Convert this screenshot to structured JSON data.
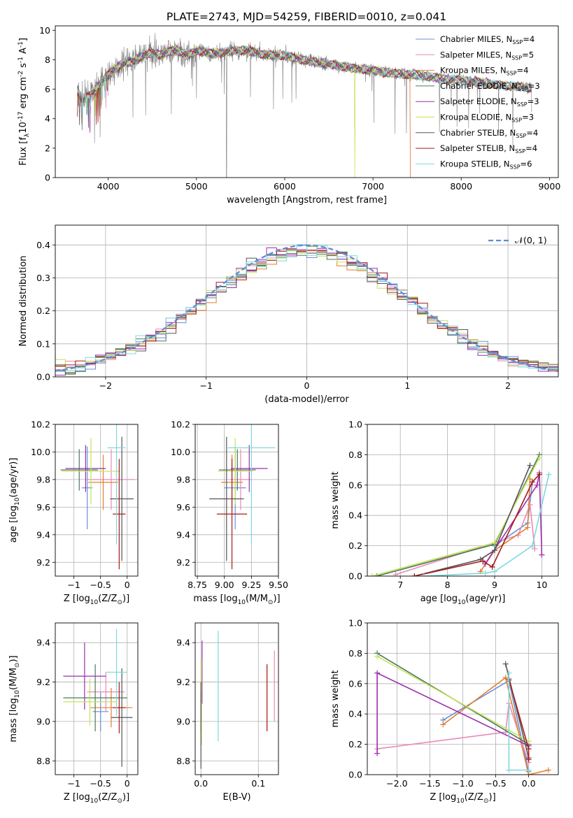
{
  "figure": {
    "title": "PLATE=2743, MJD=54259, FIBERID=0010, z=0.041"
  },
  "colors": {
    "data_line": "#808080",
    "grid": "#b0b0b0",
    "normal_curve": "#5b8bd8"
  },
  "models": [
    {
      "name": "Chabrier MILES, N$_{SSP}$=4",
      "label_main": "Chabrier MILES, N",
      "label_sub": "SSP",
      "label_tail": "=4",
      "color": "#6a8fd8"
    },
    {
      "name": "Salpeter MILES, N$_{SSP}$=5",
      "label_main": "Salpeter MILES, N",
      "label_sub": "SSP",
      "label_tail": "=5",
      "color": "#e88ab8"
    },
    {
      "name": "Kroupa MILES, N$_{SSP}$=4",
      "label_main": "Kroupa MILES, N",
      "label_sub": "SSP",
      "label_tail": "=4",
      "color": "#e2802e"
    },
    {
      "name": "Chabrier ELODIE, N$_{SSP}$=3",
      "label_main": "Chabrier ELODIE, N",
      "label_sub": "SSP",
      "label_tail": "=3",
      "color": "#4a7a5a"
    },
    {
      "name": "Salpeter ELODIE, N$_{SSP}$=3",
      "label_main": "Salpeter ELODIE, N",
      "label_sub": "SSP",
      "label_tail": "=3",
      "color": "#9b2fae"
    },
    {
      "name": "Kroupa ELODIE, N$_{SSP}$=3",
      "label_main": "Kroupa ELODIE, N",
      "label_sub": "SSP",
      "label_tail": "=3",
      "color": "#c6e25a"
    },
    {
      "name": "Chabrier STELIB, N$_{SSP}$=4",
      "label_main": "Chabrier STELIB, N",
      "label_sub": "SSP",
      "label_tail": "=4",
      "color": "#555555"
    },
    {
      "name": "Salpeter STELIB, N$_{SSP}$=4",
      "label_main": "Salpeter STELIB, N",
      "label_sub": "SSP",
      "label_tail": "=4",
      "color": "#a51c1c"
    },
    {
      "name": "Kroupa STELIB, N$_{SSP}$=6",
      "label_main": "Kroupa STELIB, N",
      "label_sub": "SSP",
      "label_tail": "=6",
      "color": "#7fd8de"
    }
  ],
  "chart_data": [
    {
      "id": "spectrum",
      "type": "line",
      "xlabel": "wavelength [Angstrom, rest frame]",
      "ylabel": "Flux [f$_\\lambda$10$^{-17}$ erg cm$^{-2}$ s$^{-1}$ A$^{-1}$]",
      "xlim": [
        3400,
        9100
      ],
      "ylim": [
        0,
        10.3
      ],
      "xticks": [
        4000,
        5000,
        6000,
        7000,
        8000,
        9000
      ],
      "yticks": [
        0,
        2,
        4,
        6,
        8,
        10
      ],
      "legend": "upper right",
      "data_trend": {
        "x": [
          3650,
          3700,
          3800,
          3900,
          4000,
          4100,
          4200,
          4300,
          4400,
          4500,
          4600,
          4700,
          4800,
          4900,
          5000,
          5200,
          5400,
          5600,
          5800,
          6000,
          6200,
          6400,
          6600,
          6800,
          7000,
          7200,
          7400,
          7600,
          7800,
          8000,
          8200,
          8400,
          8600,
          8800
        ],
        "y": [
          6.0,
          5.2,
          5.6,
          6.3,
          7.0,
          7.5,
          7.8,
          7.9,
          8.3,
          8.5,
          8.3,
          8.6,
          8.6,
          8.3,
          8.6,
          8.4,
          8.6,
          8.6,
          8.3,
          8.3,
          8.0,
          7.8,
          7.6,
          7.4,
          7.3,
          7.1,
          7.0,
          6.9,
          6.7,
          6.6,
          6.5,
          6.3,
          6.2,
          6.1
        ]
      }
    },
    {
      "id": "residuals",
      "type": "histogram",
      "xlabel": "(data-model)/error",
      "ylabel": "Normed distribution",
      "xlim": [
        -2.5,
        2.5
      ],
      "ylim": [
        0,
        0.46
      ],
      "xticks": [
        -2,
        -1,
        0,
        1,
        2
      ],
      "yticks": [
        0.0,
        0.1,
        0.2,
        0.3,
        0.4
      ],
      "legend_label": "$\\mathcal{N}(0,1)$",
      "legend_text": "𝒩(0, 1)",
      "bin_edges_start": -2.5,
      "bin_width": 0.1
    },
    {
      "id": "age_vs_Z",
      "type": "errorbar",
      "xlabel": "Z [log$_{10}$(Z/Z$_\\odot$)]",
      "ylabel": "age  [log$_{10}$(age/yr)]",
      "xlim": [
        -1.35,
        0.2
      ],
      "ylim": [
        9.1,
        10.2
      ],
      "xticks": [
        -1,
        -0.5,
        0
      ],
      "xticklabels": [
        "−1",
        "−0.5",
        "0"
      ],
      "yticks": [
        9.2,
        9.4,
        9.6,
        9.8,
        10.0,
        10.2
      ],
      "points": [
        {
          "x": -0.75,
          "y": 9.74,
          "xerr": 0.1,
          "yerr": 0.3
        },
        {
          "x": -0.3,
          "y": 9.8,
          "xerr": 0.45,
          "yerr": 0.22
        },
        {
          "x": -0.45,
          "y": 9.78,
          "xerr": 0.28,
          "yerr": 0.2
        },
        {
          "x": -0.9,
          "y": 9.87,
          "xerr": 0.35,
          "yerr": 0.15
        },
        {
          "x": -0.78,
          "y": 9.88,
          "xerr": 0.38,
          "yerr": 0.17
        },
        {
          "x": -0.68,
          "y": 9.86,
          "xerr": 0.55,
          "yerr": 0.24
        },
        {
          "x": -0.1,
          "y": 9.66,
          "xerr": 0.22,
          "yerr": 0.45
        },
        {
          "x": -0.15,
          "y": 9.55,
          "xerr": 0.12,
          "yerr": 0.4
        },
        {
          "x": -0.2,
          "y": 10.03,
          "xerr": 0.17,
          "yerr": 0.7
        }
      ]
    },
    {
      "id": "age_vs_mass",
      "type": "errorbar",
      "xlabel": "mass [log$_{10}$(M/M$_\\odot$)]",
      "ylabel": "",
      "xlim": [
        8.73,
        9.5
      ],
      "ylim": [
        9.1,
        10.2
      ],
      "xticks": [
        8.75,
        9.0,
        9.25,
        9.5
      ],
      "xticklabels": [
        "8.75",
        "9.00",
        "9.25",
        "9.50"
      ],
      "yticks": [
        9.2,
        9.4,
        9.6,
        9.8,
        10.0,
        10.2
      ],
      "points": [
        {
          "x": 9.1,
          "y": 9.74,
          "xerr": 0.1,
          "yerr": 0.3
        },
        {
          "x": 9.15,
          "y": 9.8,
          "xerr": 0.1,
          "yerr": 0.22
        },
        {
          "x": 9.07,
          "y": 9.78,
          "xerr": 0.1,
          "yerr": 0.2
        },
        {
          "x": 9.12,
          "y": 9.87,
          "xerr": 0.17,
          "yerr": 0.15
        },
        {
          "x": 9.23,
          "y": 9.88,
          "xerr": 0.17,
          "yerr": 0.17
        },
        {
          "x": 9.1,
          "y": 9.86,
          "xerr": 0.16,
          "yerr": 0.24
        },
        {
          "x": 9.02,
          "y": 9.66,
          "xerr": 0.16,
          "yerr": 0.45
        },
        {
          "x": 9.07,
          "y": 9.55,
          "xerr": 0.14,
          "yerr": 0.4
        },
        {
          "x": 9.25,
          "y": 10.03,
          "xerr": 0.22,
          "yerr": 0.7
        }
      ]
    },
    {
      "id": "weight_vs_age",
      "type": "line",
      "xlabel": "age  [log$_{10}$(age/yr)]",
      "ylabel": "mass weight",
      "xlim": [
        6.3,
        10.35
      ],
      "ylim": [
        0,
        1.0
      ],
      "xticks": [
        7,
        8,
        9,
        10
      ],
      "yticks": [
        0.0,
        0.2,
        0.4,
        0.6,
        0.8,
        1.0
      ],
      "series": [
        {
          "model": 0,
          "x": [
            9.0,
            9.7,
            9.8
          ],
          "y": [
            0.2,
            0.35,
            0.62
          ]
        },
        {
          "model": 1,
          "x": [
            6.9,
            9.5,
            9.75,
            9.85
          ],
          "y": [
            0.01,
            0.27,
            0.47,
            0.18
          ]
        },
        {
          "model": 2,
          "x": [
            8.7,
            9.0,
            9.7,
            9.75
          ],
          "y": [
            0.03,
            0.17,
            0.32,
            0.64
          ]
        },
        {
          "model": 3,
          "x": [
            6.5,
            9.0,
            9.95
          ],
          "y": [
            0.0,
            0.21,
            0.8
          ]
        },
        {
          "model": 4,
          "x": [
            8.8,
            9.9,
            9.95,
            10.0
          ],
          "y": [
            0.08,
            0.6,
            0.68,
            0.14
          ]
        },
        {
          "model": 5,
          "x": [
            6.4,
            9.0,
            9.95
          ],
          "y": [
            0.0,
            0.22,
            0.78
          ]
        },
        {
          "model": 6,
          "x": [
            7.3,
            8.7,
            9.0,
            9.75
          ],
          "y": [
            0.0,
            0.11,
            0.17,
            0.73
          ]
        },
        {
          "model": 7,
          "x": [
            7.3,
            8.75,
            8.95,
            9.8,
            9.95
          ],
          "y": [
            0.0,
            0.1,
            0.06,
            0.62,
            0.67
          ]
        },
        {
          "model": 8,
          "x": [
            7.5,
            8.8,
            9.0,
            9.8,
            10.15
          ],
          "y": [
            0.0,
            0.02,
            0.03,
            0.2,
            0.67
          ]
        }
      ]
    },
    {
      "id": "mass_vs_Z",
      "type": "errorbar",
      "xlabel": "Z [log$_{10}$(Z/Z$_\\odot$)]",
      "ylabel": "mass [log$_{10}$(M/M$_\\odot$)]",
      "xlim": [
        -1.35,
        0.2
      ],
      "ylim": [
        8.73,
        9.5
      ],
      "xticks": [
        -1,
        -0.5,
        0
      ],
      "xticklabels": [
        "−1",
        "−0.5",
        "0"
      ],
      "yticks": [
        8.8,
        9.0,
        9.2,
        9.4
      ],
      "points": [
        {
          "x": -0.5,
          "y": 9.05,
          "xerr": 0.15,
          "yerr": 0.1
        },
        {
          "x": -0.4,
          "y": 9.15,
          "xerr": 0.35,
          "yerr": 0.1
        },
        {
          "x": -0.3,
          "y": 9.07,
          "xerr": 0.4,
          "yerr": 0.1
        },
        {
          "x": -0.6,
          "y": 9.12,
          "xerr": 0.6,
          "yerr": 0.17
        },
        {
          "x": -0.8,
          "y": 9.23,
          "xerr": 0.4,
          "yerr": 0.17
        },
        {
          "x": -0.7,
          "y": 9.1,
          "xerr": 0.5,
          "yerr": 0.12
        },
        {
          "x": -0.1,
          "y": 9.02,
          "xerr": 0.2,
          "yerr": 0.25
        },
        {
          "x": -0.15,
          "y": 9.07,
          "xerr": 0.12,
          "yerr": 0.13
        },
        {
          "x": -0.2,
          "y": 9.25,
          "xerr": 0.2,
          "yerr": 0.22
        }
      ]
    },
    {
      "id": "mass_vs_ebv",
      "type": "errorbar",
      "xlabel": "E(B-V)",
      "ylabel": "",
      "xlim": [
        -0.01,
        0.135
      ],
      "ylim": [
        8.73,
        9.5
      ],
      "xticks": [
        0.0,
        0.1
      ],
      "xticklabels": [
        "0.0",
        "0.1"
      ],
      "yticks": [
        8.8,
        9.0,
        9.2,
        9.4
      ],
      "points": [
        {
          "x": 0.001,
          "y": 9.12,
          "xerr": 0,
          "yerr": 0.12
        },
        {
          "x": 0.128,
          "y": 9.18,
          "xerr": 0,
          "yerr": 0.18
        },
        {
          "x": 0.115,
          "y": 9.12,
          "xerr": 0,
          "yerr": 0.17
        },
        {
          "x": 0.0,
          "y": 9.05,
          "xerr": 0,
          "yerr": 0.1
        },
        {
          "x": 0.002,
          "y": 9.25,
          "xerr": 0,
          "yerr": 0.16
        },
        {
          "x": 0.001,
          "y": 9.1,
          "xerr": 0,
          "yerr": 0.22
        },
        {
          "x": 0.0,
          "y": 8.98,
          "xerr": 0,
          "yerr": 0.22
        },
        {
          "x": 0.115,
          "y": 9.12,
          "xerr": 0,
          "yerr": 0.17
        },
        {
          "x": 0.03,
          "y": 9.18,
          "xerr": 0,
          "yerr": 0.28
        }
      ]
    },
    {
      "id": "weight_vs_Z",
      "type": "line",
      "xlabel": "Z [log$_{10}$(Z/Z$_\\odot$)]",
      "ylabel": "mass weight",
      "xlim": [
        -2.45,
        0.45
      ],
      "ylim": [
        0,
        1.0
      ],
      "xticks": [
        -2.0,
        -1.5,
        -1.0,
        -0.5,
        0.0
      ],
      "xticklabels": [
        "−2.0",
        "−1.5",
        "−1.0",
        "−0.5",
        "0.0"
      ],
      "yticks": [
        0.0,
        0.2,
        0.4,
        0.6,
        0.8,
        1.0
      ],
      "series": [
        {
          "model": 0,
          "x": [
            -1.3,
            -0.3,
            0.0
          ],
          "y": [
            0.36,
            0.62,
            0.02
          ]
        },
        {
          "model": 1,
          "x": [
            -2.3,
            -0.35,
            -0.3,
            0.0
          ],
          "y": [
            0.17,
            0.28,
            0.47,
            0.08
          ]
        },
        {
          "model": 2,
          "x": [
            -1.3,
            -0.35,
            0.0,
            0.3
          ],
          "y": [
            0.33,
            0.64,
            0.0,
            0.03
          ]
        },
        {
          "model": 3,
          "x": [
            -2.3,
            0.0
          ],
          "y": [
            0.8,
            0.2
          ]
        },
        {
          "model": 4,
          "x": [
            -2.3,
            -2.3,
            0.0
          ],
          "y": [
            0.14,
            0.67,
            0.19
          ]
        },
        {
          "model": 5,
          "x": [
            -2.3,
            0.0
          ],
          "y": [
            0.78,
            0.22
          ]
        },
        {
          "model": 6,
          "x": [
            -0.35,
            0.0
          ],
          "y": [
            0.73,
            0.11
          ]
        },
        {
          "model": 7,
          "x": [
            -0.3,
            0.0,
            0.0
          ],
          "y": [
            0.63,
            0.17,
            0.1
          ]
        },
        {
          "model": 8,
          "x": [
            -0.3,
            -0.3,
            0.0
          ],
          "y": [
            0.67,
            0.03,
            0.03
          ]
        }
      ]
    }
  ]
}
